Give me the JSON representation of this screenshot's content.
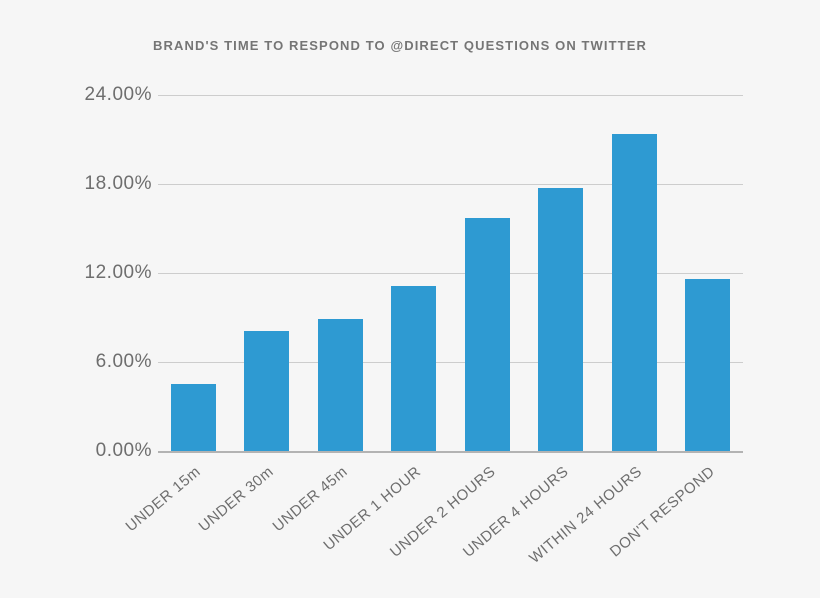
{
  "colors": {
    "bar": "#2e9ad2",
    "background": "#f6f6f6",
    "gridline": "#cdcdcd",
    "axis_line": "#b3b3b3",
    "title_text": "#757575",
    "tick_text": "#6e6e6e"
  },
  "chart_data": {
    "type": "bar",
    "title": "BRAND'S TIME TO RESPOND TO @DIRECT QUESTIONS ON TWITTER",
    "categories": [
      "UNDER 15m",
      "UNDER 30m",
      "UNDER 45m",
      "UNDER 1 HOUR",
      "UNDER 2 HOURS",
      "UNDER 4 HOURS",
      "WITHIN 24 HOURS",
      "DON'T RESPOND"
    ],
    "values": [
      4.5,
      8.1,
      8.9,
      11.1,
      15.7,
      17.7,
      21.4,
      11.6
    ],
    "xlabel": "",
    "ylabel": "",
    "ylim": [
      0,
      24
    ],
    "ytick_labels": [
      "24.00%",
      "18.00%",
      "12.00%",
      "6.00%",
      "0.00%"
    ],
    "ytick_values": [
      24,
      18,
      12,
      6,
      0
    ],
    "grid": true,
    "legend": false,
    "bar_color": "#2e9ad2"
  }
}
